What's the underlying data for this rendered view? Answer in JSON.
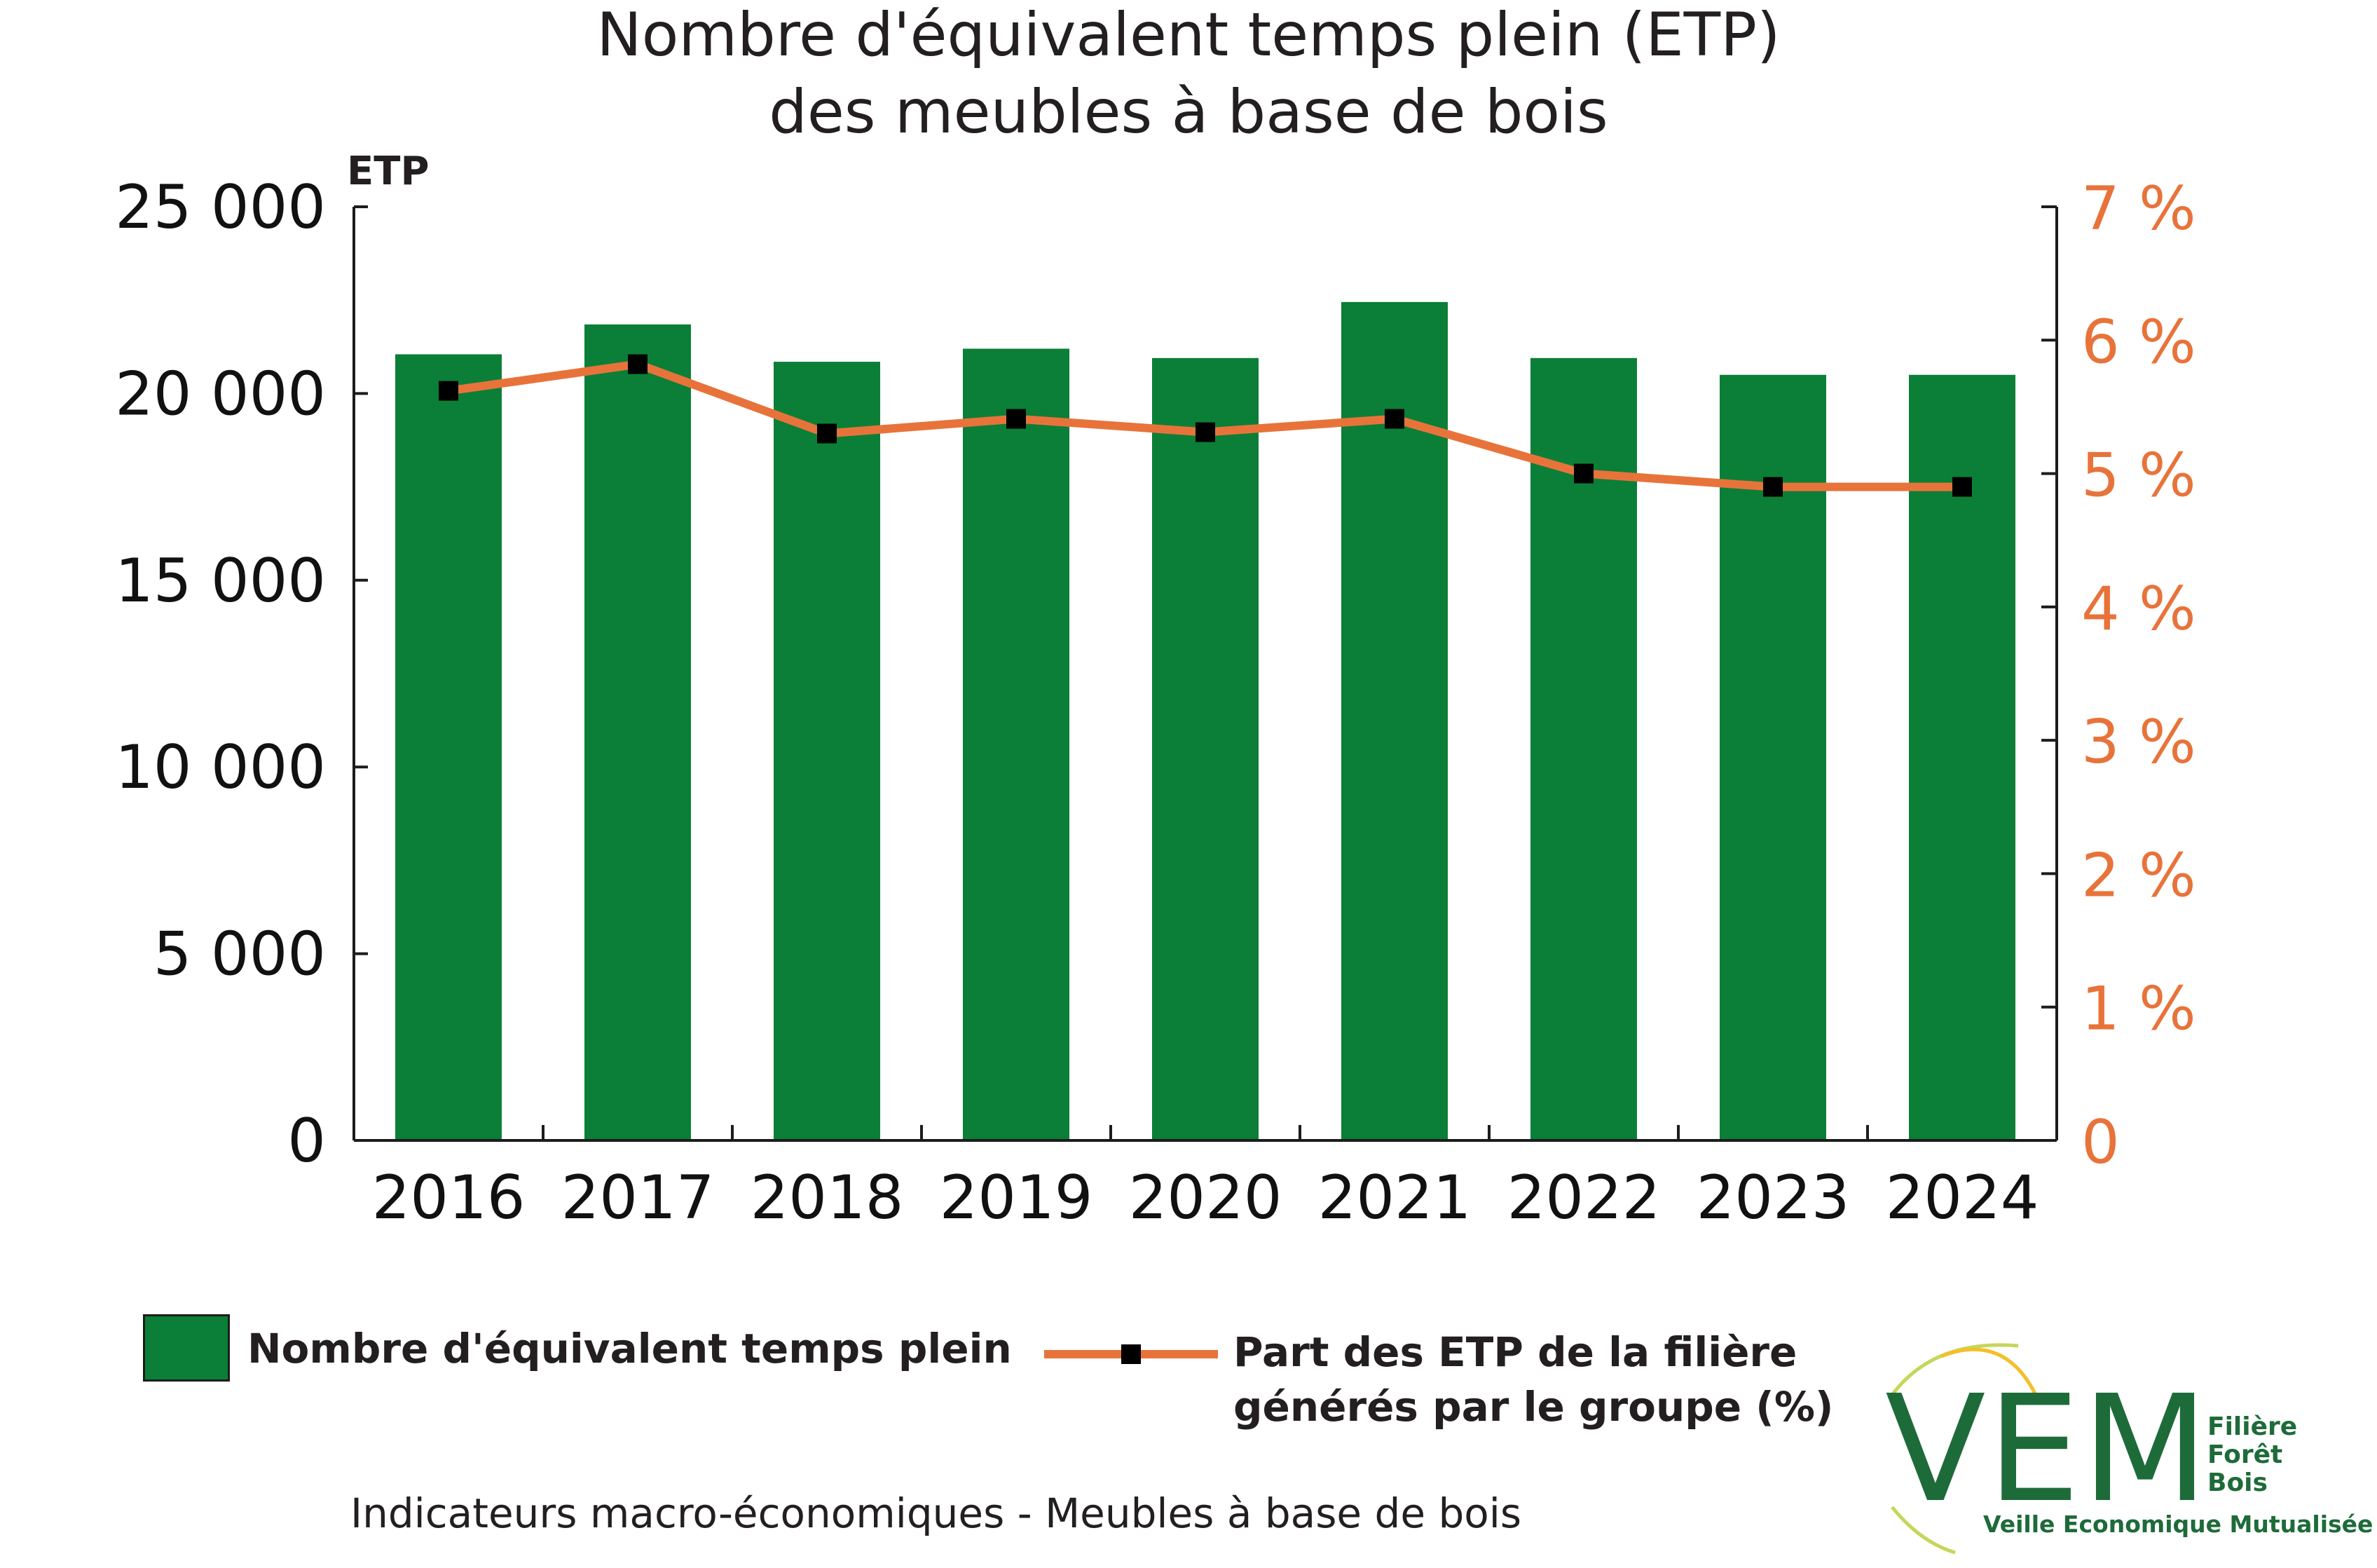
{
  "chart_data": {
    "type": "bar",
    "title": [
      "Nombre d'équivalent temps plein (ETP)",
      "des meubles à base de bois"
    ],
    "categories": [
      "2016",
      "2017",
      "2018",
      "2019",
      "2020",
      "2021",
      "2022",
      "2023",
      "2024"
    ],
    "series": [
      {
        "name": "Nombre d'équivalent temps plein",
        "type": "bar",
        "axis": "left",
        "color": "#0b7f37",
        "values": [
          21050,
          21850,
          20850,
          21200,
          20950,
          22450,
          20950,
          20500,
          20500
        ]
      },
      {
        "name": "Part des ETP de la filière générés par le groupe (%)",
        "name_lines": [
          "Part des ETP de la filière",
          "générés par le groupe (%)"
        ],
        "type": "line",
        "axis": "right",
        "color": "#e8733a",
        "marker_color": "#000000",
        "values": [
          5.62,
          5.82,
          5.3,
          5.41,
          5.31,
          5.41,
          5.0,
          4.9,
          4.9
        ]
      }
    ],
    "y_left": {
      "label": "ETP",
      "range": [
        0,
        25000
      ],
      "ticks": [
        0,
        5000,
        10000,
        15000,
        20000,
        25000
      ],
      "tick_labels": [
        "0",
        "5 000",
        "10 000",
        "15 000",
        "20 000",
        "25 000"
      ]
    },
    "y_right": {
      "range": [
        0,
        7
      ],
      "ticks": [
        0,
        1,
        2,
        3,
        4,
        5,
        6,
        7
      ],
      "tick_labels": [
        "0",
        "1 %",
        "2 %",
        "3 %",
        "4 %",
        "5 %",
        "6 %",
        "7 %"
      ],
      "color": "#e8733a"
    },
    "grid": false,
    "legend_position": "bottom"
  },
  "footer": "Indicateurs macro-économiques - Meubles à base de bois",
  "logo": {
    "letters": "VEM",
    "side_lines": [
      "Filière",
      "Forêt",
      "Bois"
    ],
    "tagline": "Veille Economique Mutualisée"
  }
}
